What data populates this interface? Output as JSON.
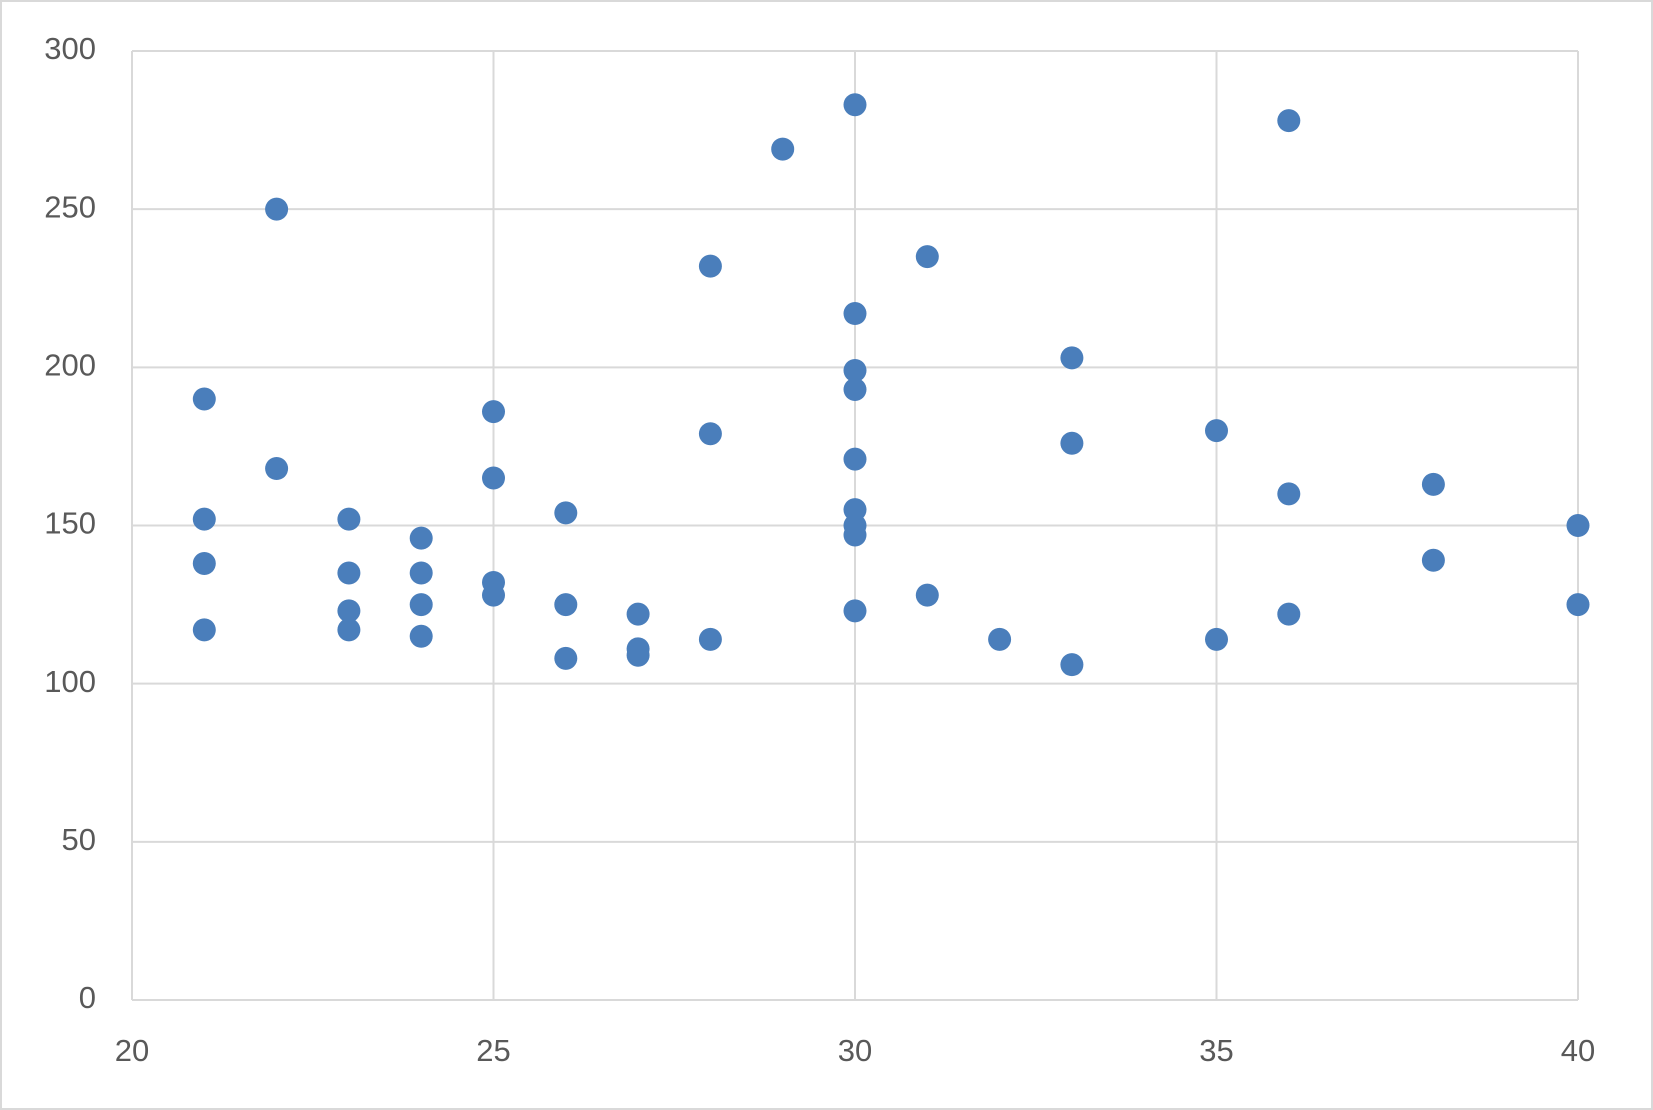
{
  "chart_data": {
    "type": "scatter",
    "x": [
      21,
      21,
      21,
      21,
      22,
      22,
      23,
      23,
      23,
      23,
      24,
      24,
      24,
      24,
      25,
      25,
      25,
      25,
      26,
      26,
      26,
      27,
      27,
      27,
      28,
      28,
      28,
      29,
      30,
      30,
      30,
      30,
      30,
      30,
      30,
      30,
      30,
      31,
      31,
      32,
      33,
      33,
      33,
      35,
      35,
      36,
      36,
      36,
      38,
      38,
      40,
      40
    ],
    "values": [
      190,
      152,
      138,
      117,
      250,
      168,
      152,
      135,
      123,
      117,
      146,
      135,
      125,
      115,
      186,
      165,
      132,
      128,
      154,
      125,
      108,
      122,
      111,
      109,
      232,
      179,
      114,
      269,
      283,
      217,
      199,
      193,
      171,
      155,
      150,
      147,
      123,
      235,
      128,
      114,
      203,
      176,
      106,
      180,
      114,
      278,
      160,
      122,
      163,
      139,
      150,
      125
    ],
    "color": "#4a7ebb",
    "xlim": [
      20,
      40
    ],
    "xticks": [
      20,
      25,
      30,
      35,
      40
    ],
    "ylim": [
      0,
      300
    ],
    "yticks": [
      0,
      50,
      100,
      150,
      200,
      250,
      300
    ],
    "grid": true
  }
}
